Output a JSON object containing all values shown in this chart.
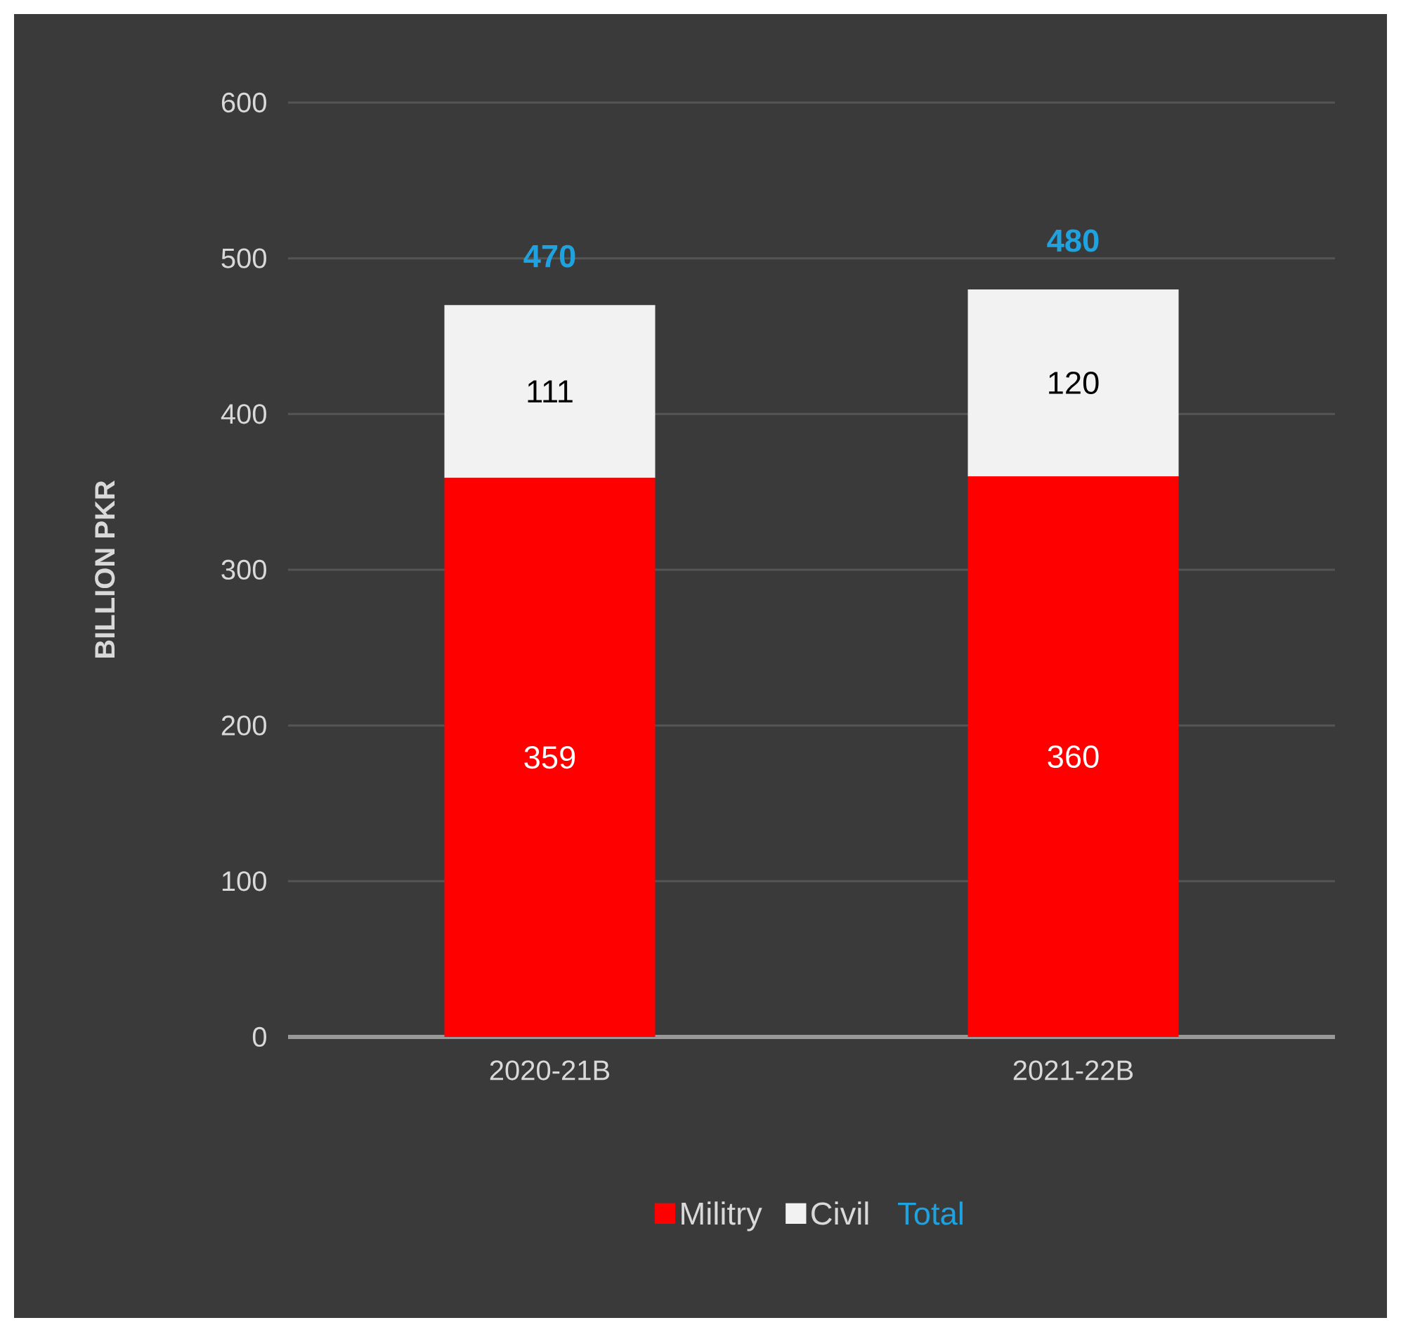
{
  "chart_data": {
    "type": "bar",
    "stacked": true,
    "ylabel": "BILLION PKR",
    "categories": [
      "2020-21B",
      "2021-22B"
    ],
    "series": [
      {
        "name": "Militry",
        "color": "#ff0000",
        "values": [
          359,
          360
        ]
      },
      {
        "name": "Civil",
        "color": "#f2f2f2",
        "values": [
          111,
          120
        ]
      }
    ],
    "ylim": [
      0,
      600
    ],
    "yticks": [
      0,
      100,
      200,
      300,
      400,
      500,
      600
    ],
    "grid": "y",
    "legend": "bottom",
    "data_labels": true,
    "totals": [
      "470",
      "480"
    ],
    "annotations": [
      "Total"
    ]
  }
}
